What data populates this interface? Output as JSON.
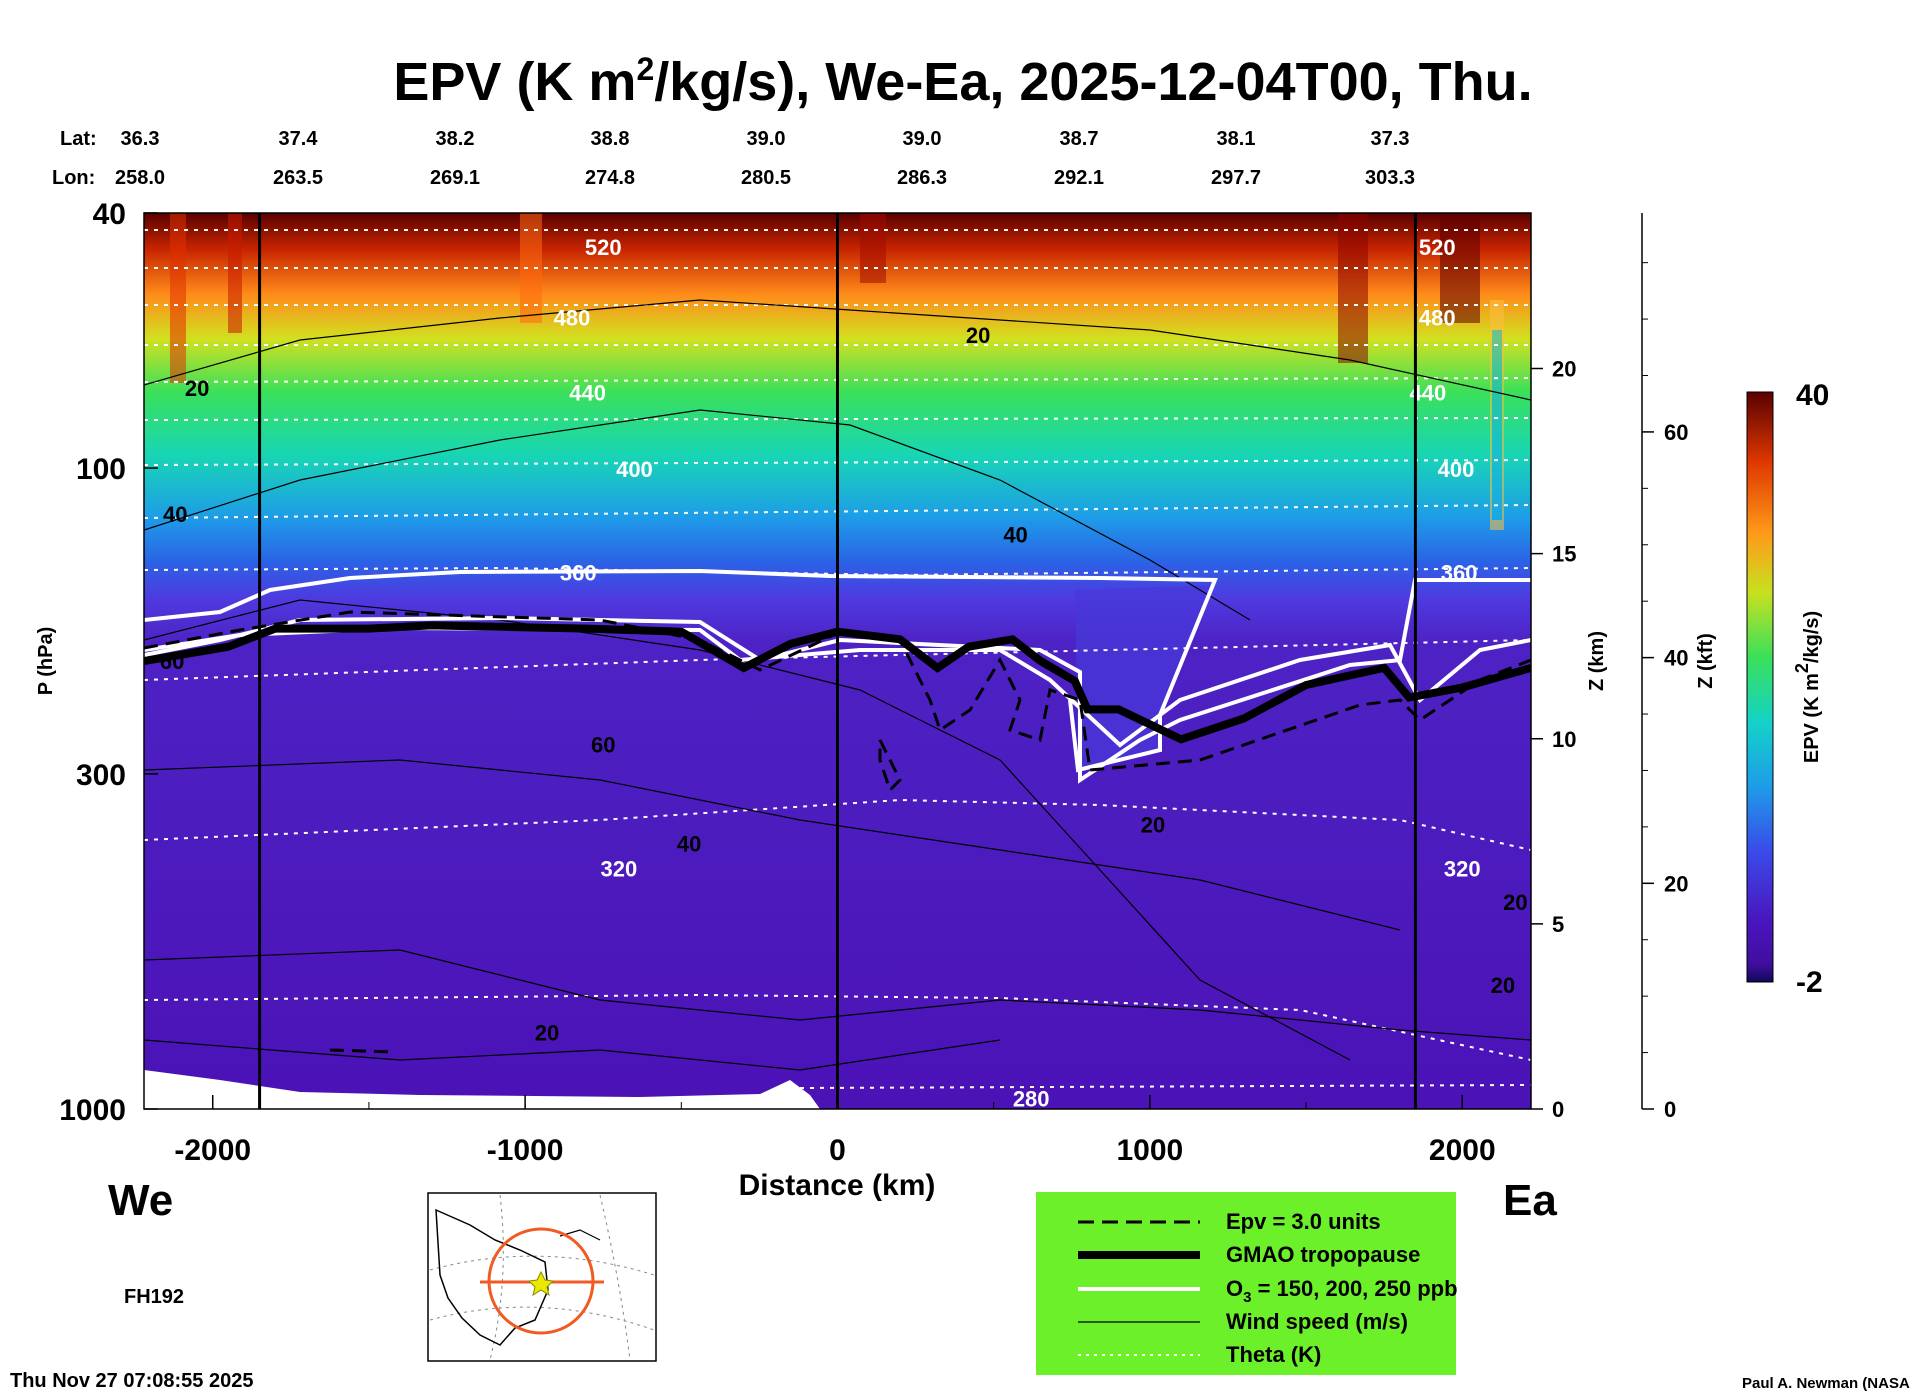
{
  "chart_data": {
    "type": "heatmap",
    "title_main": "EPV (K m",
    "title_sup": "2",
    "title_rest": "/kg/s), We-Ea, 2025-12-04T00, Thu.",
    "xlabel": "Distance (km)",
    "ylabel": "P (hPa)",
    "xlim": [
      -2220,
      2220
    ],
    "ylim_hpa": [
      1000,
      40
    ],
    "x_ticks": [
      "-2000",
      "-1000",
      "0",
      "1000",
      "2000"
    ],
    "x_tick_values": [
      -2000,
      -1000,
      0,
      1000,
      2000
    ],
    "p_ticks": [
      "40",
      "100",
      "300",
      "1000"
    ],
    "p_tick_values": [
      40,
      100,
      300,
      1000
    ],
    "z_km_label": "Z (km)",
    "z_km_ticks": [
      "0",
      "5",
      "10",
      "15",
      "20"
    ],
    "z_km_values": [
      0,
      5,
      10,
      15,
      20
    ],
    "z_kft_label": "Z (kft)",
    "z_kft_ticks": [
      "0",
      "20",
      "40",
      "60"
    ],
    "z_kft_values": [
      0,
      20,
      40,
      60
    ],
    "lat_label": "Lat:",
    "lon_label": "Lon:",
    "lats": [
      "36.3",
      "37.4",
      "38.2",
      "38.8",
      "39.0",
      "39.0",
      "38.7",
      "38.1",
      "37.3"
    ],
    "lons": [
      "258.0",
      "263.5",
      "269.1",
      "274.8",
      "280.5",
      "286.3",
      "292.1",
      "297.7",
      "303.3"
    ],
    "location_distances": [
      -2220,
      -1720,
      -1220,
      -720,
      -220,
      280,
      780,
      1280,
      1780
    ],
    "colorbar": {
      "label": "EPV (K m",
      "label_sup": "2",
      "label_rest": "/kg/s)",
      "min": -2,
      "max": 40,
      "min_label": "-2",
      "max_label": "40"
    },
    "theta_contours": [
      {
        "label": "520",
        "p": 45
      },
      {
        "label": "480",
        "p": 58
      },
      {
        "label": "440",
        "p": 76
      },
      {
        "label": "400",
        "p": 100
      },
      {
        "label": "360",
        "p": 145
      },
      {
        "label": "320",
        "p": 420
      },
      {
        "label": "280",
        "p": 960
      }
    ],
    "wind_labels": [
      {
        "label": "20",
        "x": -2050,
        "p": 75
      },
      {
        "label": "20",
        "x": 450,
        "p": 62
      },
      {
        "label": "40",
        "x": -2120,
        "p": 118
      },
      {
        "label": "40",
        "x": 570,
        "p": 127
      },
      {
        "label": "60",
        "x": -2130,
        "p": 200
      },
      {
        "label": "60",
        "x": -750,
        "p": 270
      },
      {
        "label": "40",
        "x": -475,
        "p": 385
      },
      {
        "label": "20",
        "x": 1010,
        "p": 360
      },
      {
        "label": "20",
        "x": 2170,
        "p": 475
      },
      {
        "label": "20",
        "x": -930,
        "p": 760
      },
      {
        "label": "20",
        "x": 2130,
        "p": 640
      }
    ],
    "tropopause_pressure_hpa": [
      {
        "x": -2220,
        "p": 200
      },
      {
        "x": -1950,
        "p": 190
      },
      {
        "x": -1800,
        "p": 178
      },
      {
        "x": -1500,
        "p": 178
      },
      {
        "x": -1300,
        "p": 176
      },
      {
        "x": -800,
        "p": 178
      },
      {
        "x": -500,
        "p": 180
      },
      {
        "x": -300,
        "p": 205
      },
      {
        "x": -150,
        "p": 188
      },
      {
        "x": 0,
        "p": 180
      },
      {
        "x": 200,
        "p": 185
      },
      {
        "x": 320,
        "p": 205
      },
      {
        "x": 420,
        "p": 190
      },
      {
        "x": 560,
        "p": 185
      },
      {
        "x": 650,
        "p": 200
      },
      {
        "x": 760,
        "p": 215
      },
      {
        "x": 800,
        "p": 238
      },
      {
        "x": 900,
        "p": 238
      },
      {
        "x": 1100,
        "p": 265
      },
      {
        "x": 1300,
        "p": 246
      },
      {
        "x": 1500,
        "p": 218
      },
      {
        "x": 1750,
        "p": 205
      },
      {
        "x": 1830,
        "p": 228
      },
      {
        "x": 2000,
        "p": 220
      },
      {
        "x": 2220,
        "p": 205
      }
    ],
    "legend": [
      {
        "label": "Epv = 3.0 units",
        "style": "dashed-black"
      },
      {
        "label": "GMAO tropopause",
        "style": "thick-black"
      },
      {
        "label": "O",
        "label_sub": "3",
        "label_rest": " = 150, 200, 250 ppb",
        "style": "white"
      },
      {
        "label": "Wind speed (m/s)",
        "style": "thin-black"
      },
      {
        "label": "Theta (K)",
        "style": "dotted-white"
      }
    ]
  },
  "labels": {
    "west": "We",
    "east": "Ea",
    "forecast_hour": "FH192",
    "timestamp": "Thu Nov 27 07:08:55 2025",
    "credit": "Paul A. Newman (NASA"
  },
  "colors": {
    "legend_bg": "#6cf029",
    "violet": "#4d10b9",
    "stratosphere_top": "#7a0a00"
  }
}
